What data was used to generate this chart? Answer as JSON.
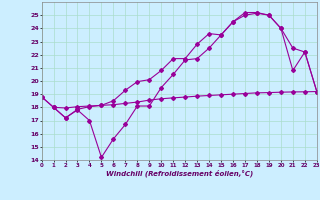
{
  "line1_x": [
    0,
    1,
    2,
    3,
    4,
    5,
    6,
    7,
    8,
    9,
    10,
    11,
    12,
    13,
    14,
    15,
    16,
    17,
    18,
    19,
    20,
    21,
    22,
    23
  ],
  "line1_y": [
    18.8,
    18.0,
    17.95,
    18.05,
    18.1,
    18.15,
    18.2,
    18.3,
    18.4,
    18.55,
    18.65,
    18.72,
    18.78,
    18.85,
    18.9,
    18.95,
    19.0,
    19.05,
    19.1,
    19.12,
    19.15,
    19.17,
    19.18,
    19.2
  ],
  "line2_x": [
    0,
    1,
    2,
    3,
    4,
    5,
    6,
    7,
    8,
    9,
    10,
    11,
    12,
    13,
    14,
    15,
    16,
    17,
    18,
    19,
    20,
    21,
    22,
    23
  ],
  "line2_y": [
    18.8,
    18.0,
    17.2,
    17.8,
    17.0,
    14.2,
    15.6,
    16.7,
    18.1,
    18.1,
    19.5,
    20.5,
    21.6,
    21.7,
    22.5,
    23.5,
    24.5,
    25.2,
    25.2,
    25.0,
    24.0,
    20.8,
    22.2,
    19.2
  ],
  "line3_x": [
    1,
    2,
    3,
    4,
    5,
    6,
    7,
    8,
    9,
    10,
    11,
    12,
    13,
    14,
    15,
    16,
    17,
    18,
    19,
    20,
    21,
    22,
    23
  ],
  "line3_y": [
    18.0,
    17.2,
    17.85,
    18.05,
    18.15,
    18.5,
    19.3,
    19.95,
    20.1,
    20.8,
    21.7,
    21.7,
    22.8,
    23.6,
    23.5,
    24.5,
    25.0,
    25.15,
    25.0,
    24.0,
    22.5,
    22.2,
    19.2
  ],
  "line_color": "#990099",
  "bg_color": "#cceeff",
  "grid_color": "#aaddcc",
  "xlabel": "Windchill (Refroidissement éolien,°C)",
  "ylim": [
    14,
    26
  ],
  "xlim": [
    0,
    23
  ],
  "yticks": [
    14,
    15,
    16,
    17,
    18,
    19,
    20,
    21,
    22,
    23,
    24,
    25
  ],
  "xticks": [
    0,
    1,
    2,
    3,
    4,
    5,
    6,
    7,
    8,
    9,
    10,
    11,
    12,
    13,
    14,
    15,
    16,
    17,
    18,
    19,
    20,
    21,
    22,
    23
  ],
  "marker": "D",
  "markersize": 2.0,
  "linewidth": 0.8
}
